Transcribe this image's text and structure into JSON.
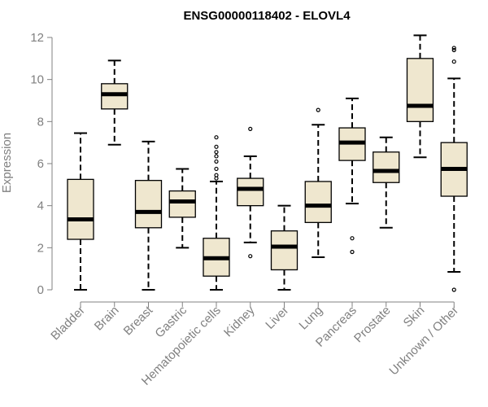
{
  "chart_data": {
    "type": "box",
    "title": "ENSG00000118402 - ELOVL4",
    "xlabel": "",
    "ylabel": "Expression",
    "ylim": [
      0,
      12
    ],
    "yticks": [
      0,
      2,
      4,
      6,
      8,
      10,
      12
    ],
    "box_fill": "#efe7cf",
    "categories": [
      "Bladder",
      "Brain",
      "Breast",
      "Gastric",
      "Hematopoietic cells",
      "Kidney",
      "Liver",
      "Lung",
      "Pancreas",
      "Prostate",
      "Skin",
      "Unknown / Other"
    ],
    "boxes": [
      {
        "name": "Bladder",
        "whisker_low": 0.0,
        "q1": 2.4,
        "median": 3.35,
        "q3": 5.25,
        "whisker_high": 7.45,
        "outliers": []
      },
      {
        "name": "Brain",
        "whisker_low": 6.9,
        "q1": 8.6,
        "median": 9.3,
        "q3": 9.8,
        "whisker_high": 10.9,
        "outliers": []
      },
      {
        "name": "Breast",
        "whisker_low": 0.0,
        "q1": 2.95,
        "median": 3.7,
        "q3": 5.2,
        "whisker_high": 7.05,
        "outliers": []
      },
      {
        "name": "Gastric",
        "whisker_low": 2.0,
        "q1": 3.45,
        "median": 4.2,
        "q3": 4.7,
        "whisker_high": 5.75,
        "outliers": []
      },
      {
        "name": "Hematopoietic cells",
        "whisker_low": 0.0,
        "q1": 0.65,
        "median": 1.5,
        "q3": 2.45,
        "whisker_high": 5.15,
        "outliers": [
          5.3,
          5.45,
          5.75,
          6.1,
          6.35,
          6.55,
          6.8,
          7.25
        ]
      },
      {
        "name": "Kidney",
        "whisker_low": 2.25,
        "q1": 4.0,
        "median": 4.8,
        "q3": 5.3,
        "whisker_high": 6.35,
        "outliers": [
          1.6,
          7.65
        ]
      },
      {
        "name": "Liver",
        "whisker_low": 0.0,
        "q1": 0.95,
        "median": 2.05,
        "q3": 2.8,
        "whisker_high": 4.0,
        "outliers": []
      },
      {
        "name": "Lung",
        "whisker_low": 1.55,
        "q1": 3.2,
        "median": 4.0,
        "q3": 5.15,
        "whisker_high": 7.85,
        "outliers": [
          8.55
        ]
      },
      {
        "name": "Pancreas",
        "whisker_low": 4.1,
        "q1": 6.15,
        "median": 7.0,
        "q3": 7.7,
        "whisker_high": 9.1,
        "outliers": [
          1.8,
          2.45
        ]
      },
      {
        "name": "Prostate",
        "whisker_low": 2.95,
        "q1": 5.1,
        "median": 5.65,
        "q3": 6.55,
        "whisker_high": 7.25,
        "outliers": []
      },
      {
        "name": "Skin",
        "whisker_low": 6.3,
        "q1": 8.0,
        "median": 8.75,
        "q3": 11.0,
        "whisker_high": 12.1,
        "outliers": []
      },
      {
        "name": "Unknown / Other",
        "whisker_low": 0.85,
        "q1": 4.45,
        "median": 5.75,
        "q3": 7.0,
        "whisker_high": 10.05,
        "outliers": [
          0.0,
          10.85,
          11.4,
          11.5
        ]
      }
    ]
  }
}
